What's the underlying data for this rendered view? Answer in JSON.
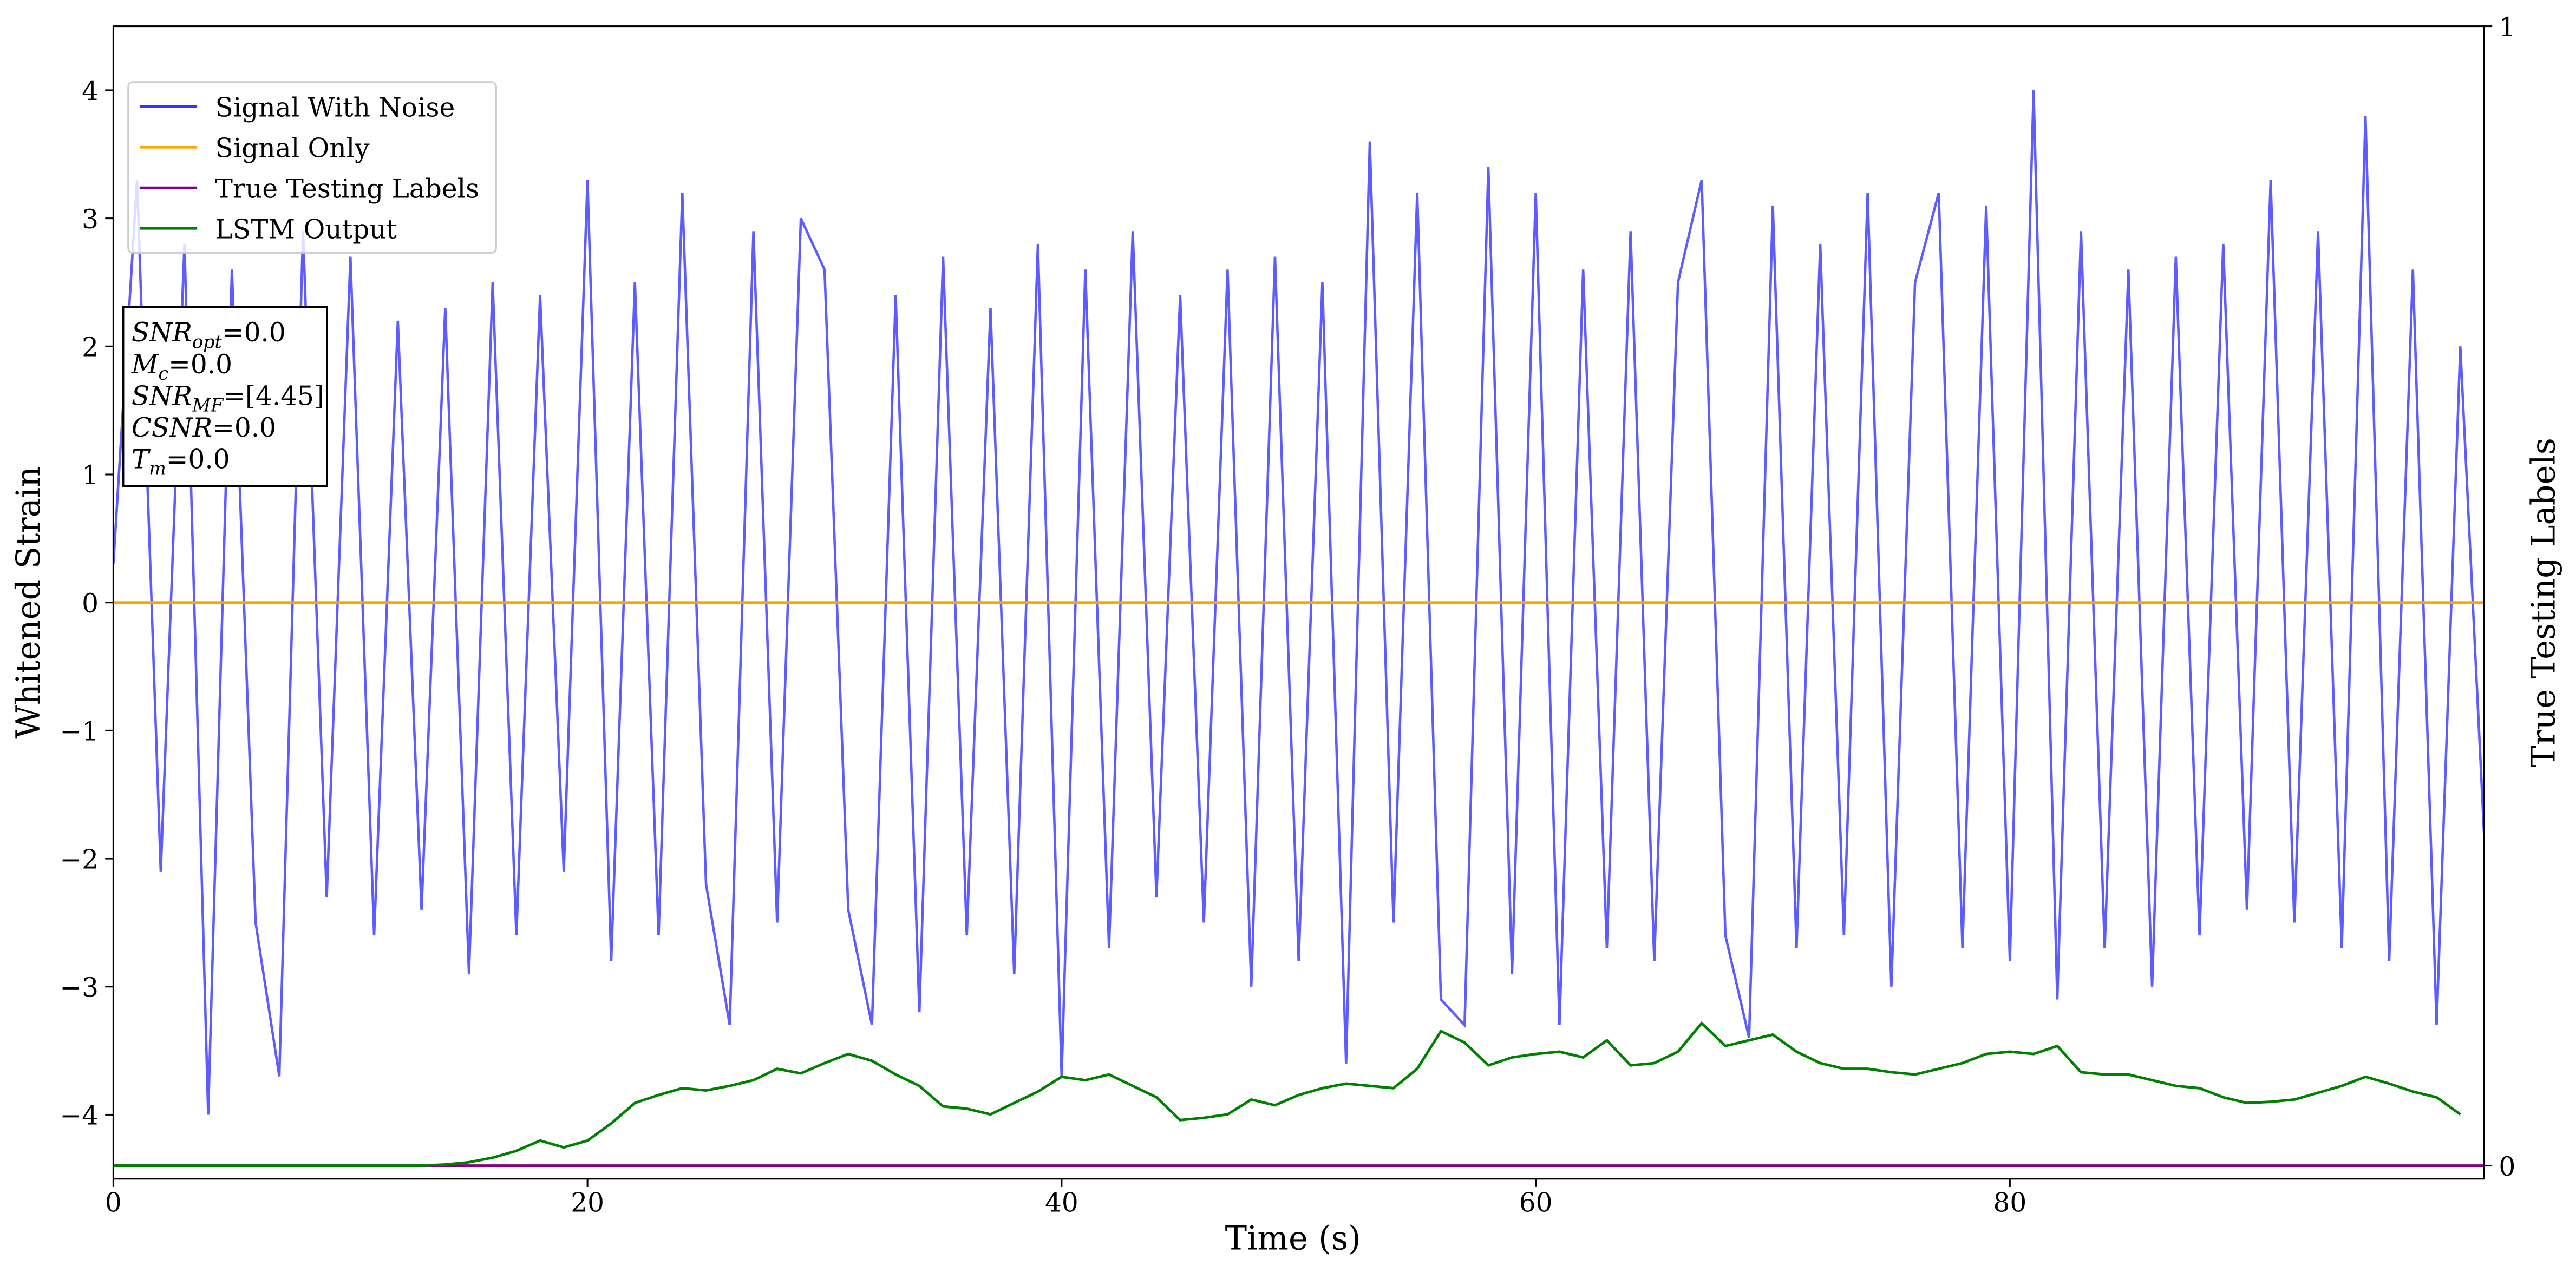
{
  "chart_data": {
    "type": "line",
    "xlabel": "Time (s)",
    "ylabel": "Whitened Strain",
    "y2label": "True Testing Labels",
    "xlim": [
      0,
      100
    ],
    "ylim": [
      -4.5,
      4.5
    ],
    "y2lim": [
      -0.0115,
      1
    ],
    "xticks": [
      0,
      20,
      40,
      60,
      80
    ],
    "yticks": [
      {
        "value": -4,
        "label": "−4"
      },
      {
        "value": -3,
        "label": "−3"
      },
      {
        "value": -2,
        "label": "−2"
      },
      {
        "value": -1,
        "label": "−1"
      },
      0,
      1,
      2,
      3,
      4
    ],
    "y2ticks": [
      0,
      1
    ],
    "legend": "upper left",
    "x": [
      0,
      1,
      2,
      3,
      4,
      5,
      6,
      7,
      8,
      9,
      10,
      11,
      12,
      13,
      14,
      15,
      16,
      17,
      18,
      19,
      20,
      21,
      22,
      23,
      24,
      25,
      26,
      27,
      28,
      29,
      30,
      31,
      32,
      33,
      34,
      35,
      36,
      37,
      38,
      39,
      40,
      41,
      42,
      43,
      44,
      45,
      46,
      47,
      48,
      49,
      50,
      51,
      52,
      53,
      54,
      55,
      56,
      57,
      58,
      59,
      60,
      61,
      62,
      63,
      64,
      65,
      66,
      67,
      68,
      69,
      70,
      71,
      72,
      73,
      74,
      75,
      76,
      77,
      78,
      79,
      80,
      81,
      82,
      83,
      84,
      85,
      86,
      87,
      88,
      89,
      90,
      91,
      92,
      93,
      94,
      95,
      96,
      97,
      98,
      99,
      100
    ],
    "series": [
      {
        "name": "Signal With Noise",
        "color": "#3333ff",
        "values": [
          0.3,
          3.3,
          -2.1,
          2.8,
          -4.0,
          2.6,
          -2.5,
          -3.7,
          2.9,
          -2.3,
          2.7,
          -2.6,
          2.2,
          -2.4,
          2.3,
          -2.9,
          2.5,
          -2.6,
          2.4,
          -2.1,
          3.3,
          -2.8,
          2.5,
          -2.6,
          3.2,
          -2.2,
          -3.3,
          2.9,
          -2.5,
          3.0,
          2.6,
          -2.4,
          -3.3,
          2.4,
          -3.2,
          2.7,
          -2.6,
          2.3,
          -2.9,
          2.8,
          -3.7,
          2.6,
          -2.7,
          2.9,
          -2.3,
          2.4,
          -2.5,
          2.6,
          -3.0,
          2.7,
          -2.8,
          2.5,
          -3.6,
          3.6,
          -2.5,
          3.2,
          -3.1,
          -3.3,
          3.4,
          -2.9,
          3.2,
          -3.3,
          2.6,
          -2.7,
          2.9,
          -2.8,
          2.5,
          3.3,
          -2.6,
          -3.4,
          3.1,
          -2.7,
          2.8,
          -2.6,
          3.2,
          -3.0,
          2.5,
          3.2,
          -2.7,
          3.1,
          -2.8,
          4.0,
          -3.1,
          2.9,
          -2.7,
          2.6,
          -3.0,
          2.7,
          -2.6,
          2.8,
          -2.4,
          3.3,
          -2.5,
          2.9,
          -2.7,
          3.8,
          -2.8,
          2.6,
          -3.3,
          2.0,
          -1.8
        ]
      },
      {
        "name": "Signal Only",
        "color": "#ffa500",
        "values": [
          0,
          0,
          0,
          0,
          0,
          0,
          0,
          0,
          0,
          0,
          0,
          0,
          0,
          0,
          0,
          0,
          0,
          0,
          0,
          0,
          0,
          0,
          0,
          0,
          0,
          0,
          0,
          0,
          0,
          0,
          0,
          0,
          0,
          0,
          0,
          0,
          0,
          0,
          0,
          0,
          0,
          0,
          0,
          0,
          0,
          0,
          0,
          0,
          0,
          0,
          0,
          0,
          0,
          0,
          0,
          0,
          0,
          0,
          0,
          0,
          0,
          0,
          0,
          0,
          0,
          0,
          0,
          0,
          0,
          0,
          0,
          0,
          0,
          0,
          0,
          0,
          0,
          0,
          0,
          0,
          0,
          0,
          0,
          0,
          0,
          0,
          0,
          0,
          0,
          0,
          0,
          0,
          0,
          0,
          0,
          0,
          0,
          0,
          0,
          0,
          0
        ]
      },
      {
        "name": "True Testing Labels",
        "color": "#800080",
        "axis": "y2",
        "values": [
          0,
          0,
          0,
          0,
          0,
          0,
          0,
          0,
          0,
          0,
          0,
          0,
          0,
          0,
          0,
          0,
          0,
          0,
          0,
          0,
          0,
          0,
          0,
          0,
          0,
          0,
          0,
          0,
          0,
          0,
          0,
          0,
          0,
          0,
          0,
          0,
          0,
          0,
          0,
          0,
          0,
          0,
          0,
          0,
          0,
          0,
          0,
          0,
          0,
          0,
          0,
          0,
          0,
          0,
          0,
          0,
          0,
          0,
          0,
          0,
          0,
          0,
          0,
          0,
          0,
          0,
          0,
          0,
          0,
          0,
          0,
          0,
          0,
          0,
          0,
          0,
          0,
          0,
          0,
          0,
          0,
          0,
          0,
          0,
          0,
          0,
          0,
          0,
          0,
          0,
          0,
          0,
          0,
          0,
          0,
          0,
          0,
          0,
          0,
          0,
          0
        ]
      },
      {
        "name": "LSTM Output",
        "color": "#008000",
        "axis": "y2",
        "values": [
          0,
          0,
          0,
          0,
          0,
          0,
          0,
          0,
          0,
          0,
          0,
          0,
          0,
          0,
          0.001,
          0.003,
          0.007,
          0.013,
          0.022,
          0.016,
          0.022,
          0.037,
          0.055,
          0.062,
          0.068,
          0.066,
          0.07,
          0.075,
          0.085,
          0.081,
          0.09,
          0.098,
          0.092,
          0.08,
          0.07,
          0.052,
          0.05,
          0.045,
          0.055,
          0.065,
          0.078,
          0.075,
          0.08,
          0.07,
          0.06,
          0.04,
          0.042,
          0.045,
          0.058,
          0.053,
          0.062,
          0.068,
          0.072,
          0.07,
          0.068,
          0.085,
          0.118,
          0.108,
          0.088,
          0.095,
          0.098,
          0.1,
          0.095,
          0.11,
          0.088,
          0.09,
          0.1,
          0.125,
          0.105,
          0.11,
          0.115,
          0.1,
          0.09,
          0.085,
          0.085,
          0.082,
          0.08,
          0.085,
          0.09,
          0.098,
          0.1,
          0.098,
          0.105,
          0.082,
          0.08,
          0.08,
          0.075,
          0.07,
          0.068,
          0.06,
          0.055,
          0.056,
          0.058,
          0.064,
          0.07,
          0.078,
          0.072,
          0.065,
          0.06,
          0.045,
          null
        ]
      }
    ],
    "annotations": [
      {
        "symbol": "SNR",
        "subscript": "opt",
        "text": "=0.0"
      },
      {
        "symbol": "M",
        "subscript": "c",
        "text": "=0.0"
      },
      {
        "symbol": "SNR",
        "subscript": "MF",
        "text": "=[4.45]"
      },
      {
        "symbol": "CSNR",
        "text": "=0.0"
      },
      {
        "symbol": "T",
        "subscript": "m",
        "text": "=0.0"
      }
    ]
  }
}
